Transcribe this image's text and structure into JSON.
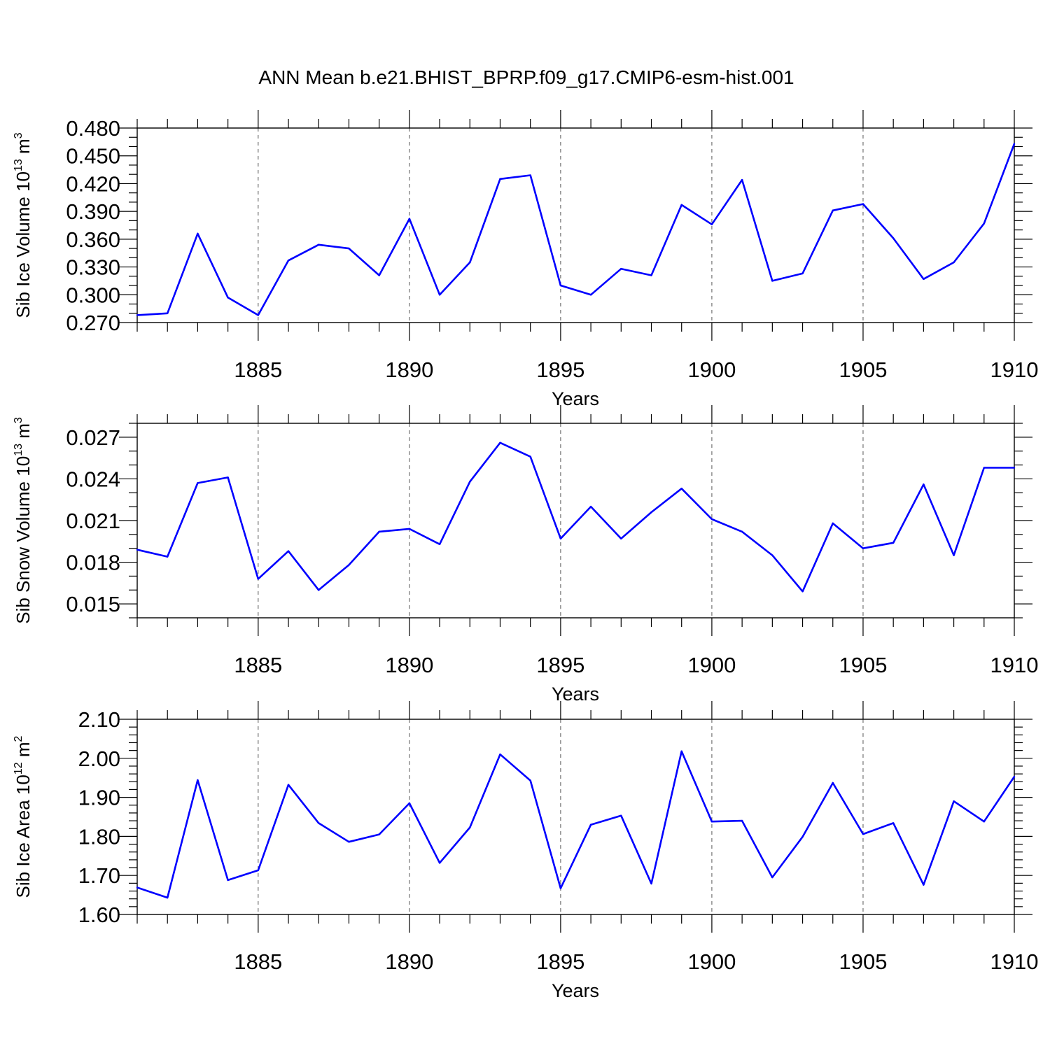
{
  "figure": {
    "title": "ANN Mean b.e21.BHIST_BPRP.f09_g17.CMIP6-esm-hist.001"
  },
  "chart_data": [
    {
      "type": "line",
      "ylabel_main": "Sib Ice Volume 10",
      "ylabel_exp": "13",
      "ylabel_unit": " m",
      "ylabel_unit_exp": "3",
      "xlabel": "Years",
      "xlim": [
        1881,
        1910
      ],
      "ylim": [
        0.27,
        0.48
      ],
      "yticks": [
        0.27,
        0.3,
        0.33,
        0.36,
        0.39,
        0.42,
        0.45,
        0.48
      ],
      "ytick_labels": [
        "0.270",
        "0.300",
        "0.330",
        "0.360",
        "0.390",
        "0.420",
        "0.450",
        "0.480"
      ],
      "yminor": 0.01,
      "xticks": [
        1885,
        1890,
        1895,
        1900,
        1905,
        1910
      ],
      "xtick_labels": [
        "1885",
        "1890",
        "1895",
        "1900",
        "1905",
        "1910"
      ],
      "line_color": "#0000ff",
      "series": [
        {
          "name": "Sib Ice Volume",
          "x": [
            1881,
            1882,
            1883,
            1884,
            1885,
            1886,
            1887,
            1888,
            1889,
            1890,
            1891,
            1892,
            1893,
            1894,
            1895,
            1896,
            1897,
            1898,
            1899,
            1900,
            1901,
            1902,
            1903,
            1904,
            1905,
            1906,
            1907,
            1908,
            1909,
            1910
          ],
          "values": [
            0.278,
            0.28,
            0.366,
            0.297,
            0.278,
            0.337,
            0.354,
            0.35,
            0.321,
            0.382,
            0.3,
            0.335,
            0.425,
            0.429,
            0.31,
            0.3,
            0.328,
            0.321,
            0.397,
            0.376,
            0.424,
            0.315,
            0.323,
            0.391,
            0.398,
            0.361,
            0.317,
            0.335,
            0.377,
            0.463
          ]
        }
      ]
    },
    {
      "type": "line",
      "ylabel_main": "Sib Snow Volume 10",
      "ylabel_exp": "13",
      "ylabel_unit": " m",
      "ylabel_unit_exp": "3",
      "xlabel": "Years",
      "xlim": [
        1881,
        1910
      ],
      "ylim": [
        0.014,
        0.028
      ],
      "yticks": [
        0.015,
        0.018,
        0.021,
        0.024,
        0.027
      ],
      "ytick_labels": [
        "0.015",
        "0.018",
        "0.021",
        "0.024",
        "0.027"
      ],
      "yminor": 0.001,
      "xticks": [
        1885,
        1890,
        1895,
        1900,
        1905,
        1910
      ],
      "xtick_labels": [
        "1885",
        "1890",
        "1895",
        "1900",
        "1905",
        "1910"
      ],
      "line_color": "#0000ff",
      "series": [
        {
          "name": "Sib Snow Volume",
          "x": [
            1881,
            1882,
            1883,
            1884,
            1885,
            1886,
            1887,
            1888,
            1889,
            1890,
            1891,
            1892,
            1893,
            1894,
            1895,
            1896,
            1897,
            1898,
            1899,
            1900,
            1901,
            1902,
            1903,
            1904,
            1905,
            1906,
            1907,
            1908,
            1909,
            1910
          ],
          "values": [
            0.0189,
            0.0184,
            0.0237,
            0.0241,
            0.0168,
            0.0188,
            0.016,
            0.0178,
            0.0202,
            0.0204,
            0.0193,
            0.0238,
            0.0266,
            0.0256,
            0.0197,
            0.022,
            0.0197,
            0.0216,
            0.0233,
            0.0211,
            0.0202,
            0.0185,
            0.0159,
            0.0208,
            0.019,
            0.0194,
            0.0236,
            0.0185,
            0.0248,
            0.0248
          ]
        }
      ]
    },
    {
      "type": "line",
      "ylabel_main": "Sib Ice Area 10",
      "ylabel_exp": "12",
      "ylabel_unit": " m",
      "ylabel_unit_exp": "2",
      "xlabel": "Years",
      "xlim": [
        1881,
        1910
      ],
      "ylim": [
        1.6,
        2.1
      ],
      "yticks": [
        1.6,
        1.7,
        1.8,
        1.9,
        2.0,
        2.1
      ],
      "ytick_labels": [
        "1.60",
        "1.70",
        "1.80",
        "1.90",
        "2.00",
        "2.10"
      ],
      "yminor": 0.02,
      "xticks": [
        1885,
        1890,
        1895,
        1900,
        1905,
        1910
      ],
      "xtick_labels": [
        "1885",
        "1890",
        "1895",
        "1900",
        "1905",
        "1910"
      ],
      "line_color": "#0000ff",
      "series": [
        {
          "name": "Sib Ice Area",
          "x": [
            1881,
            1882,
            1883,
            1884,
            1885,
            1886,
            1887,
            1888,
            1889,
            1890,
            1891,
            1892,
            1893,
            1894,
            1895,
            1896,
            1897,
            1898,
            1899,
            1900,
            1901,
            1902,
            1903,
            1904,
            1905,
            1906,
            1907,
            1908,
            1909,
            1910
          ],
          "values": [
            1.669,
            1.643,
            1.944,
            1.688,
            1.713,
            1.932,
            1.834,
            1.786,
            1.805,
            1.885,
            1.732,
            1.823,
            2.01,
            1.943,
            1.667,
            1.83,
            1.853,
            1.679,
            2.018,
            1.838,
            1.84,
            1.695,
            1.799,
            1.937,
            1.806,
            1.834,
            1.676,
            1.89,
            1.838,
            1.953
          ]
        }
      ]
    }
  ]
}
